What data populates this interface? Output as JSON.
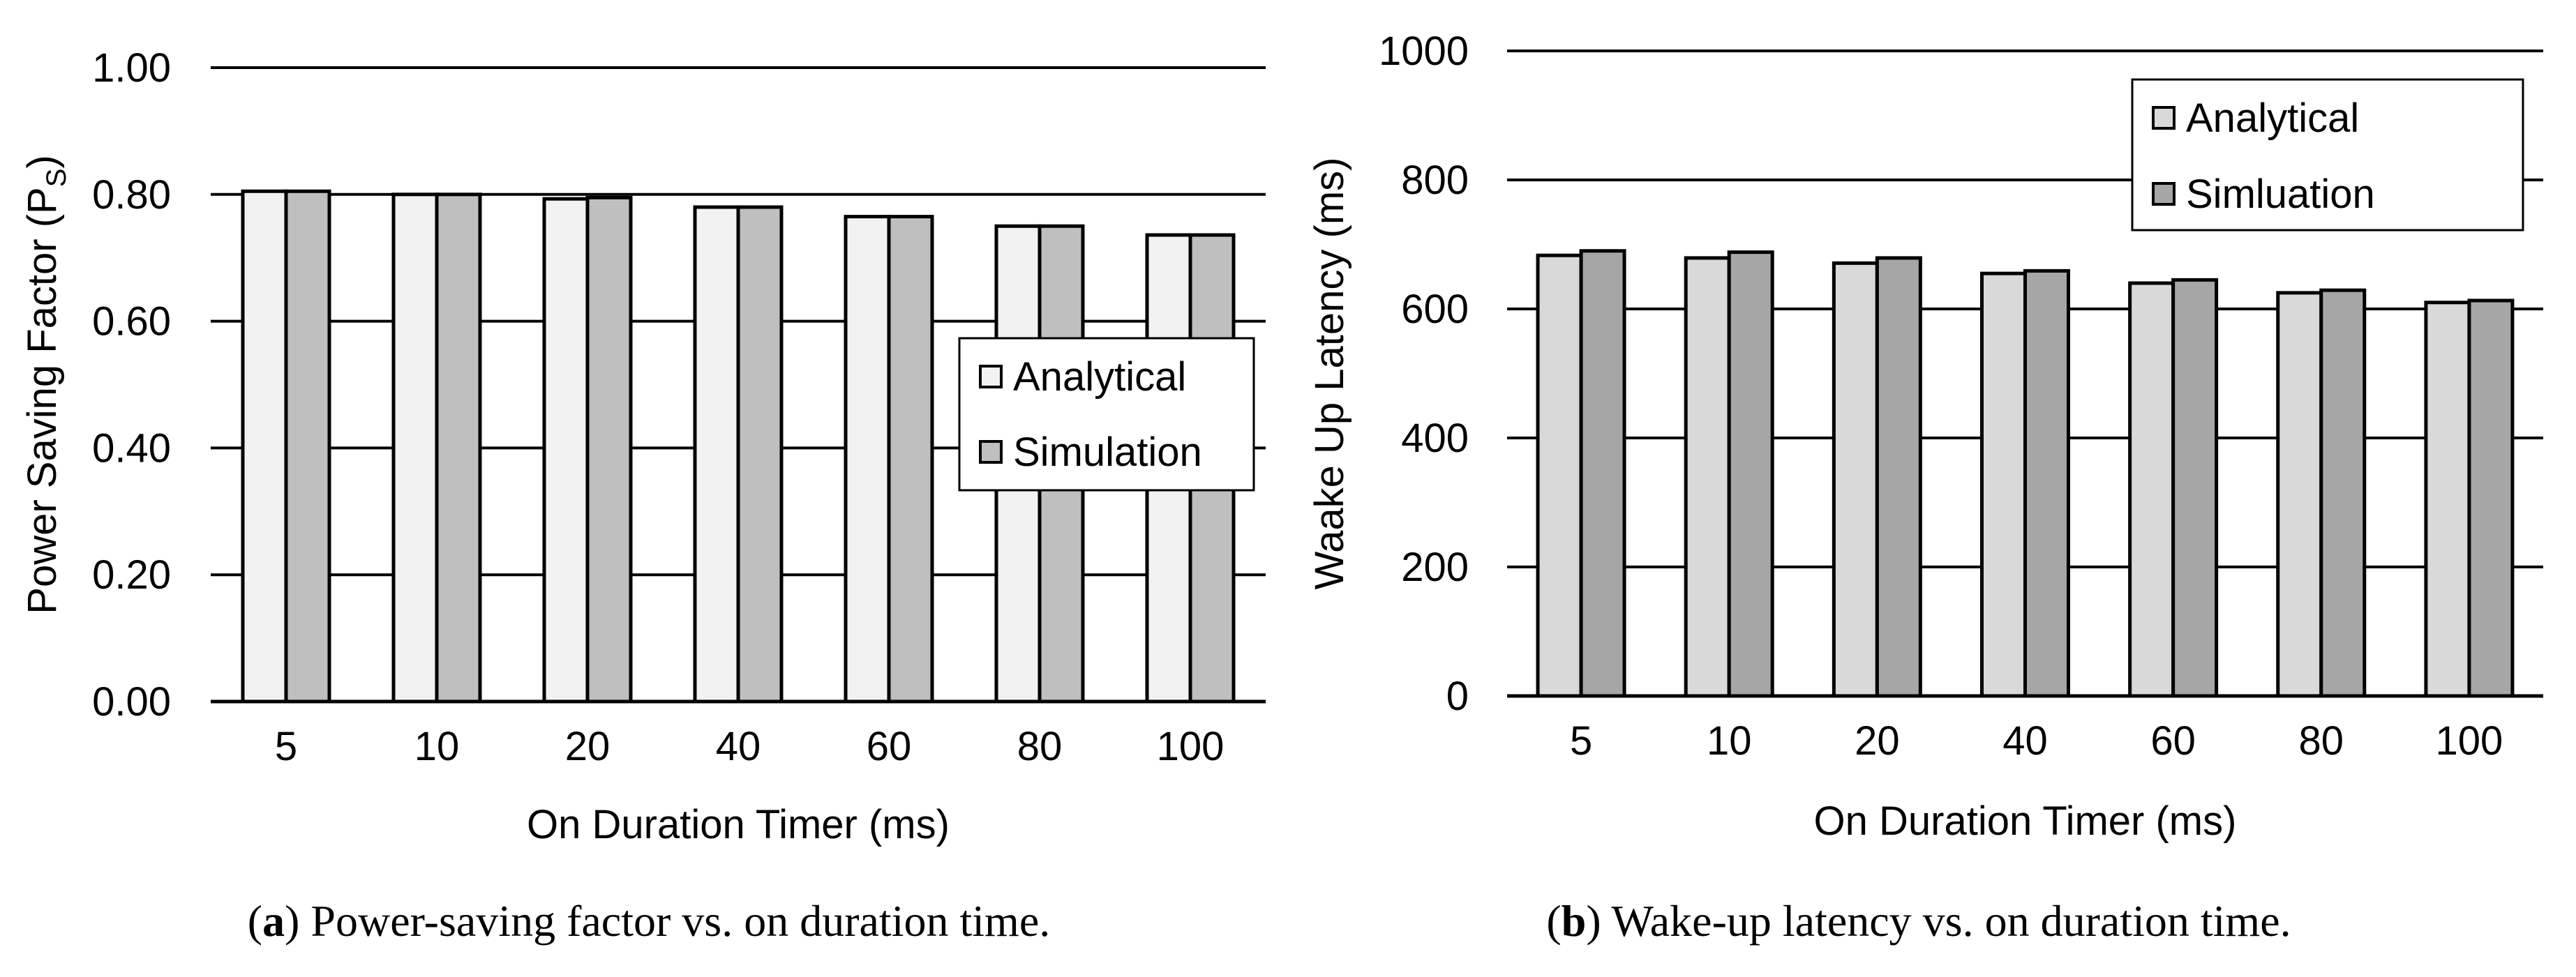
{
  "chart_data": [
    {
      "id": "a",
      "type": "bar",
      "title": "",
      "xlabel": "On Duration Timer (ms)",
      "ylabel": "Power Saving Factor (P",
      "ylabel_sub": "S",
      "ylabel_close": ")",
      "categories": [
        "5",
        "10",
        "20",
        "40",
        "60",
        "80",
        "100"
      ],
      "series": [
        {
          "name": "Analytical",
          "color": "#f2f2f2",
          "values": [
            0.805,
            0.8,
            0.793,
            0.78,
            0.765,
            0.75,
            0.736
          ]
        },
        {
          "name": "Simulation",
          "color": "#bfbfbf",
          "values": [
            0.805,
            0.8,
            0.795,
            0.78,
            0.765,
            0.75,
            0.736
          ]
        }
      ],
      "ylim": [
        0,
        1
      ],
      "yticks": [
        0,
        0.2,
        0.4,
        0.6,
        0.8,
        1.0
      ],
      "ytick_labels": [
        "0.00",
        "0.20",
        "0.40",
        "0.60",
        "0.80",
        "1.00"
      ],
      "grid": true,
      "legend_position": "middle-right",
      "caption_label": "a",
      "caption_text": "Power-saving factor vs. on duration time."
    },
    {
      "id": "b",
      "type": "bar",
      "title": "",
      "xlabel": "On Duration Timer (ms)",
      "ylabel": "Waake Up Latency (ms)",
      "ylabel_sub": "",
      "ylabel_close": "",
      "categories": [
        "5",
        "10",
        "20",
        "40",
        "60",
        "80",
        "100"
      ],
      "series": [
        {
          "name": "Analytical",
          "color": "#d9d9d9",
          "values": [
            683,
            679,
            671,
            655,
            640,
            625,
            610
          ]
        },
        {
          "name": "Simluation",
          "color": "#a6a6a6",
          "values": [
            690,
            688,
            679,
            659,
            645,
            629,
            613
          ]
        }
      ],
      "ylim": [
        0,
        1000
      ],
      "yticks": [
        0,
        200,
        400,
        600,
        800,
        1000
      ],
      "ytick_labels": [
        "0",
        "200",
        "400",
        "600",
        "800",
        "1000"
      ],
      "grid": true,
      "legend_position": "top-right",
      "caption_label": "b",
      "caption_text": "Wake-up latency vs. on duration time."
    }
  ]
}
